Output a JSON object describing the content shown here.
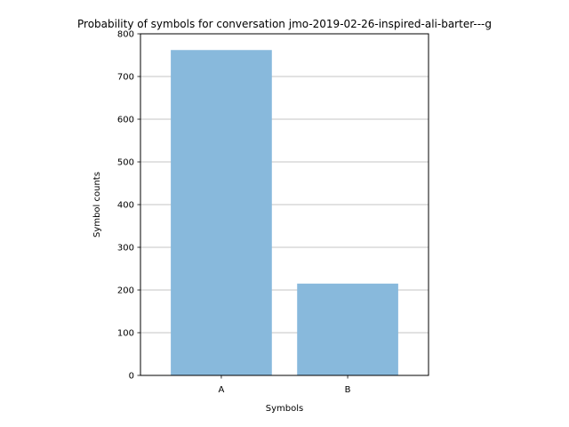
{
  "chart_data": {
    "type": "bar",
    "title": "Probability of symbols for conversation jmo-2019-02-26-inspired-ali-barter---g",
    "xlabel": "Symbols",
    "ylabel": "Symbol counts",
    "categories": [
      "A",
      "B"
    ],
    "values": [
      762,
      215
    ],
    "ylim": [
      0,
      800
    ],
    "yticks": [
      0,
      100,
      200,
      300,
      400,
      500,
      600,
      700,
      800
    ],
    "grid": "y-major",
    "legend": "none",
    "bar_color": "#88b9dc"
  }
}
